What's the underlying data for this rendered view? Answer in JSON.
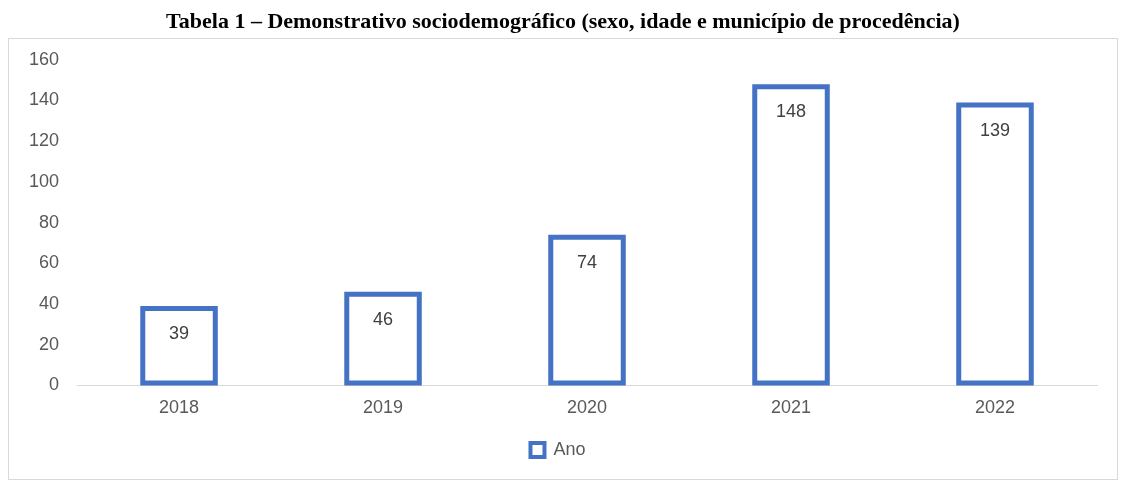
{
  "chart_data": {
    "type": "bar",
    "title": "Tabela 1 – Demonstrativo sociodemográfico (sexo, idade e município de procedência)",
    "categories": [
      "2018",
      "2019",
      "2020",
      "2021",
      "2022"
    ],
    "series": [
      {
        "name": "Ano",
        "color": "#4472c4",
        "values": [
          39,
          46,
          74,
          148,
          139
        ]
      }
    ],
    "ylim": [
      0,
      160
    ],
    "yticks": [
      0,
      20,
      40,
      60,
      80,
      100,
      120,
      140,
      160
    ],
    "grid": false,
    "legend": "bottom",
    "data_labels": true
  }
}
